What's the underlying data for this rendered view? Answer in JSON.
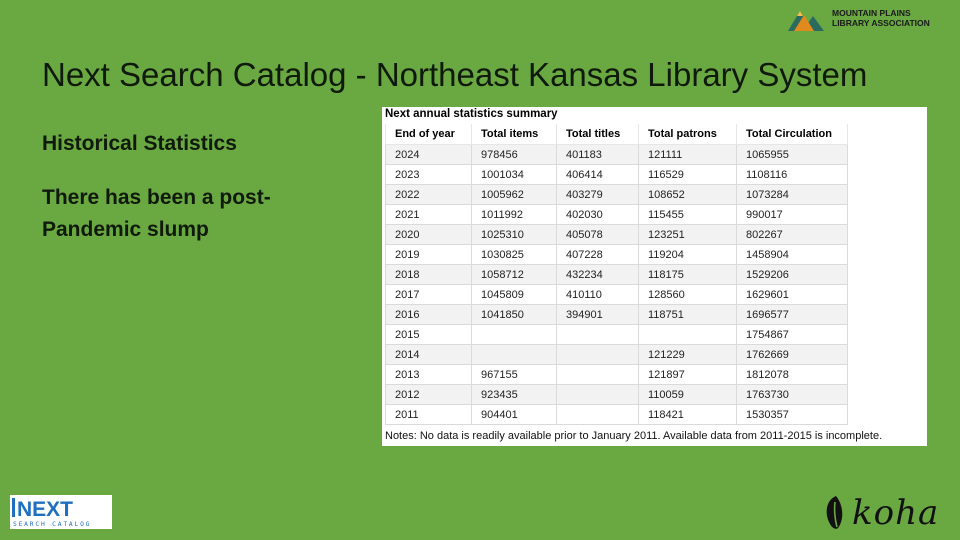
{
  "header": {
    "title": "Next Search Catalog - Northeast Kansas Library System"
  },
  "left": {
    "subhead": "Historical Statistics",
    "body": "There has been a post-Pandemic slump"
  },
  "logos": {
    "mpla_line1": "MOUNTAIN PLAINS",
    "mpla_line2": "LIBRARY ASSOCIATION",
    "next_main": "NEXT",
    "next_sub": "SEARCH CATALOG",
    "koha": "koha"
  },
  "table": {
    "caption": "Next annual statistics summary",
    "columns": [
      "End of year",
      "Total items",
      "Total titles",
      "Total patrons",
      "Total Circulation"
    ],
    "rows": [
      [
        "2024",
        "978456",
        "401183",
        "121111",
        "1065955"
      ],
      [
        "2023",
        "1001034",
        "406414",
        "116529",
        "1108116"
      ],
      [
        "2022",
        "1005962",
        "403279",
        "108652",
        "1073284"
      ],
      [
        "2021",
        "1011992",
        "402030",
        "115455",
        "990017"
      ],
      [
        "2020",
        "1025310",
        "405078",
        "123251",
        "802267"
      ],
      [
        "2019",
        "1030825",
        "407228",
        "119204",
        "1458904"
      ],
      [
        "2018",
        "1058712",
        "432234",
        "118175",
        "1529206"
      ],
      [
        "2017",
        "1045809",
        "410110",
        "128560",
        "1629601"
      ],
      [
        "2016",
        "1041850",
        "394901",
        "118751",
        "1696577"
      ],
      [
        "2015",
        "",
        "",
        "",
        "1754867"
      ],
      [
        "2014",
        "",
        "",
        "121229",
        "1762669"
      ],
      [
        "2013",
        "967155",
        "",
        "121897",
        "1812078"
      ],
      [
        "2012",
        "923435",
        "",
        "110059",
        "1763730"
      ],
      [
        "2011",
        "904401",
        "",
        "118421",
        "1530357"
      ]
    ],
    "notes": "Notes: No data is readily available prior to January 2011. Available data from 2011-2015 is incomplete."
  }
}
